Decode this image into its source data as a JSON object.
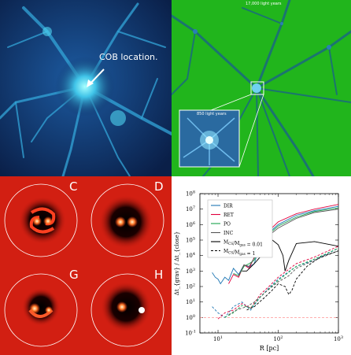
{
  "blue_panel": {
    "annotation": "COB location."
  },
  "green_panel": {
    "scale_top": "17,000 light years",
    "inset_scale": "850 light years"
  },
  "sim_panels": {
    "labels": [
      "C",
      "D",
      "G",
      "H"
    ]
  },
  "chart_data": {
    "type": "line",
    "xlabel": "R [pc]",
    "ylabel": "Δt_{grav} / Δt_{close}",
    "xscale": "log",
    "yscale": "log",
    "xlim": [
      5,
      1000
    ],
    "ylim": [
      0.1,
      100000000
    ],
    "xticks": [
      "10^1",
      "10^2",
      "10^3"
    ],
    "yticks": [
      "10^{-1}",
      "10^0",
      "10^1",
      "10^2",
      "10^3",
      "10^4",
      "10^5",
      "10^6",
      "10^7",
      "10^8"
    ],
    "legend_placement": "top-left",
    "legend": [
      {
        "label": "DIR",
        "color": "#1f77b4",
        "style": "solid"
      },
      {
        "label": "RET",
        "color": "#e0003c",
        "style": "solid"
      },
      {
        "label": "PO",
        "color": "#17a34a",
        "style": "solid"
      },
      {
        "label": "INC",
        "color": "#555555",
        "style": "solid"
      },
      {
        "label": "M_{CS}/M_{gas} = 0.01",
        "color": "#000000",
        "style": "solid"
      },
      {
        "label": "M_{CS}/M_{gas} = 1",
        "color": "#000000",
        "style": "dashed"
      }
    ],
    "series": [
      {
        "name": "DIR",
        "style": "solid",
        "color": "#1f77b4",
        "x": [
          8,
          9,
          10,
          11,
          13,
          15,
          18,
          22,
          27,
          33,
          40,
          50,
          70,
          100,
          200,
          400,
          1000
        ],
        "y": [
          800,
          400,
          300,
          150,
          400,
          250,
          1500,
          600,
          2500,
          1800,
          3000,
          50000,
          300000,
          1000000,
          4000000,
          8000000,
          15000000
        ]
      },
      {
        "name": "RET",
        "style": "solid",
        "color": "#e0003c",
        "x": [
          15,
          18,
          22,
          27,
          33,
          40,
          50,
          70,
          100,
          200,
          400,
          1000
        ],
        "y": [
          150,
          600,
          400,
          2500,
          1500,
          8000,
          60000,
          400000,
          1500000,
          5000000,
          10000000,
          20000000
        ]
      },
      {
        "name": "PO",
        "style": "solid",
        "color": "#17a34a",
        "x": [
          18,
          22,
          27,
          33,
          40,
          50,
          70,
          100,
          200,
          400,
          1000
        ],
        "y": [
          700,
          500,
          2000,
          3000,
          5000,
          40000,
          250000,
          800000,
          3000000,
          7000000,
          12000000
        ]
      },
      {
        "name": "INC",
        "style": "solid",
        "color": "#555555",
        "x": [
          22,
          27,
          33,
          40,
          50,
          70,
          100,
          200,
          400,
          1000
        ],
        "y": [
          500,
          2500,
          2000,
          7000,
          30000,
          200000,
          600000,
          2500000,
          6000000,
          10000000
        ]
      },
      {
        "name": "M_{CS}/M_{gas} = 0.01",
        "style": "solid",
        "color": "#000000",
        "x": [
          25,
          30,
          40,
          50,
          60,
          80,
          100,
          120,
          130,
          150,
          200,
          400,
          1000
        ],
        "y": [
          1000,
          1000,
          3000,
          8000,
          30000,
          100000,
          50000,
          10000,
          1000,
          5000,
          60000,
          80000,
          40000
        ]
      },
      {
        "name": "DIR (M_{CS}/M_{gas} = 1)",
        "style": "dashed",
        "color": "#1f77b4",
        "x": [
          8,
          10,
          13,
          18,
          25,
          35,
          50,
          70,
          100,
          200,
          400,
          1000
        ],
        "y": [
          5,
          2,
          1,
          5,
          10,
          3,
          20,
          80,
          300,
          2000,
          5000,
          30000
        ]
      },
      {
        "name": "RET (M_{CS}/M_{gas} = 1)",
        "style": "dashed",
        "color": "#e0003c",
        "x": [
          10,
          13,
          18,
          25,
          35,
          50,
          70,
          100,
          200,
          400,
          1000
        ],
        "y": [
          0.8,
          2,
          3,
          8,
          4,
          30,
          100,
          400,
          3000,
          8000,
          40000
        ]
      },
      {
        "name": "PO (M_{CS}/M_{gas} = 1)",
        "style": "dashed",
        "color": "#17a34a",
        "x": [
          13,
          18,
          25,
          35,
          50,
          70,
          100,
          200,
          400,
          1000
        ],
        "y": [
          1,
          2,
          6,
          4,
          20,
          70,
          250,
          2000,
          6000,
          30000
        ]
      },
      {
        "name": "INC (M_{CS}/M_{gas} = 1)",
        "style": "dashed",
        "color": "#555555",
        "x": [
          15,
          20,
          30,
          40,
          60,
          100,
          150,
          200,
          400,
          1000
        ],
        "y": [
          1.5,
          3,
          5,
          10,
          40,
          200,
          500,
          1500,
          5000,
          20000
        ]
      },
      {
        "name": "black dashed (M_{CS}/M_{gas} = 1)",
        "style": "dashed",
        "color": "#000000",
        "x": [
          30,
          40,
          60,
          80,
          100,
          130,
          150,
          170,
          200,
          300,
          500,
          1000
        ],
        "y": [
          3,
          5,
          20,
          60,
          150,
          100,
          30,
          60,
          300,
          2000,
          8000,
          20000
        ]
      }
    ],
    "reference_line": {
      "y": 1,
      "style": "dashed",
      "color": "#ff7f7f"
    }
  }
}
